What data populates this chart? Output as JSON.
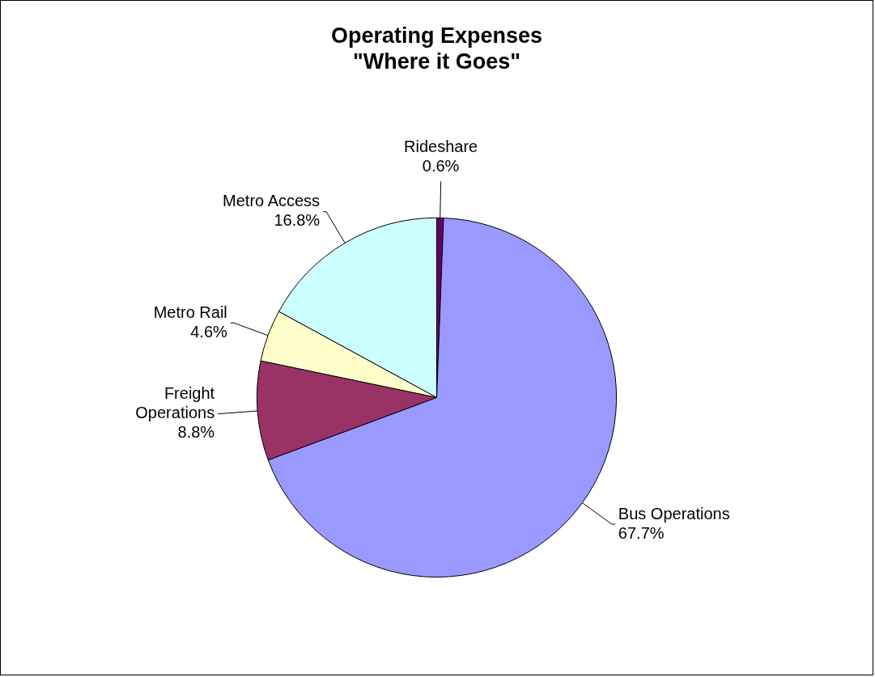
{
  "chart_data": {
    "type": "pie",
    "title": "Operating Expenses\n\"Where it Goes\"",
    "categories": [
      "Rideshare",
      "Bus Operations",
      "Freight Operations",
      "Metro Rail",
      "Metro Access"
    ],
    "values": [
      0.6,
      67.7,
      8.8,
      4.6,
      16.8
    ],
    "value_labels": [
      "0.6%",
      "67.7%",
      "8.8%",
      "4.6%",
      "16.8%"
    ],
    "colors": [
      "#660066",
      "#9999ff",
      "#993366",
      "#ffffcc",
      "#ccffff"
    ],
    "legend": false
  }
}
